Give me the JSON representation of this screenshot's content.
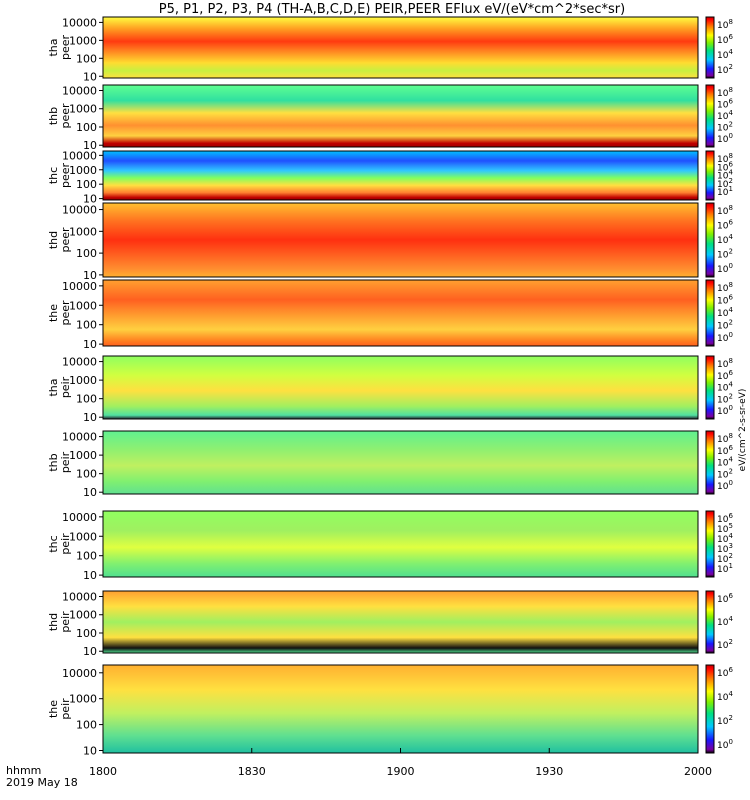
{
  "chart_data": {
    "type": "heatmap",
    "title": "P5, P1, P2, P3, P4 (TH-A,B,C,D,E) PEIR,PEER EFlux eV/(eV*cm^2*sec*sr)",
    "x_label_line1": "hhmm",
    "x_label_line2": "2019 May 18",
    "x_ticks": [
      "1800",
      "1830",
      "1900",
      "1930",
      "2000"
    ],
    "x_range": [
      "18:00",
      "20:00"
    ],
    "y_scale": "log",
    "y_range": [
      8,
      20000
    ],
    "y_ticks": [
      "10000",
      "1000",
      "100",
      "10"
    ],
    "colorscale": "rainbow (purple-blue-green-yellow-red)",
    "colorbar_unit": "eV/(cm^2-s-sr-eV)",
    "panels": [
      {
        "probe": "tha",
        "species": "peer",
        "cbar": [
          "10^8",
          "10^6",
          "10^4",
          "10^2"
        ]
      },
      {
        "probe": "thb",
        "species": "peer",
        "cbar": [
          "10^8",
          "10^6",
          "10^4",
          "10^2",
          "10^0"
        ]
      },
      {
        "probe": "thc",
        "species": "peer",
        "cbar": [
          "10^8",
          "10^6",
          "10^4",
          "10^2",
          "10^1"
        ]
      },
      {
        "probe": "thd",
        "species": "peer",
        "cbar": [
          "10^8",
          "10^6",
          "10^4",
          "10^2",
          "10^0"
        ]
      },
      {
        "probe": "the",
        "species": "peer",
        "cbar": [
          "10^8",
          "10^6",
          "10^4",
          "10^2",
          "10^0"
        ]
      },
      {
        "probe": "tha",
        "species": "peir",
        "cbar": [
          "10^8",
          "10^6",
          "10^4",
          "10^2",
          "10^0"
        ]
      },
      {
        "probe": "thb",
        "species": "peir",
        "cbar": [
          "10^8",
          "10^6",
          "10^4",
          "10^2",
          "10^0"
        ]
      },
      {
        "probe": "thc",
        "species": "peir",
        "cbar": [
          "10^6",
          "10^5",
          "10^4",
          "10^3",
          "10^2",
          "10^1"
        ]
      },
      {
        "probe": "thd",
        "species": "peir",
        "cbar": [
          "10^6",
          "10^4",
          "10^2"
        ]
      },
      {
        "probe": "the",
        "species": "peir",
        "cbar": [
          "10^6",
          "10^4",
          "10^2",
          "10^0"
        ]
      }
    ]
  }
}
